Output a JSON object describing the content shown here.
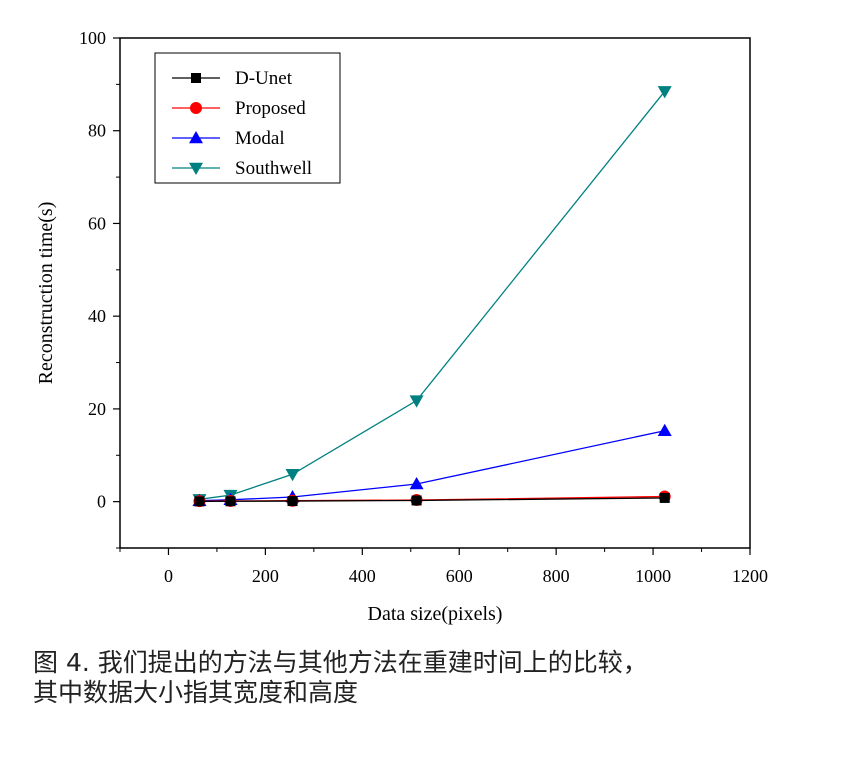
{
  "chart_data": {
    "type": "line",
    "title": "",
    "xlabel": "Data size(pixels)",
    "ylabel": "Reconstruction time(s)",
    "xlim": [
      -100,
      1200
    ],
    "ylim": [
      -10,
      100
    ],
    "xticks": [
      0,
      200,
      400,
      600,
      800,
      1000,
      1200
    ],
    "yticks": [
      0,
      20,
      40,
      60,
      80,
      100
    ],
    "xtick_labels": [
      "0",
      "200",
      "400",
      "600",
      "800",
      "1000",
      "1200"
    ],
    "ytick_labels": [
      "0",
      "20",
      "40",
      "60",
      "80",
      "100"
    ],
    "grid": false,
    "legend_position": "top-left",
    "series": [
      {
        "name": "D-Unet",
        "color": "#000000",
        "marker": "square",
        "x": [
          64,
          128,
          256,
          512,
          1024
        ],
        "y": [
          0.05,
          0.08,
          0.12,
          0.25,
          0.8
        ]
      },
      {
        "name": "Proposed",
        "color": "#ff0000",
        "marker": "circle",
        "x": [
          64,
          128,
          256,
          512,
          1024
        ],
        "y": [
          0.1,
          0.15,
          0.2,
          0.35,
          1.1
        ]
      },
      {
        "name": "Modal",
        "color": "#0000ff",
        "marker": "triangle-up",
        "x": [
          64,
          128,
          256,
          512,
          1024
        ],
        "y": [
          0.2,
          0.4,
          1.0,
          3.8,
          15.3
        ]
      },
      {
        "name": "Southwell",
        "color": "#008080",
        "marker": "triangle-down",
        "x": [
          64,
          128,
          256,
          512,
          1024
        ],
        "y": [
          0.5,
          1.4,
          5.9,
          21.8,
          88.5
        ]
      }
    ]
  },
  "caption": {
    "line1": "图 4. 我们提出的方法与其他方法在重建时间上的比较，",
    "line2": "其中数据大小指其宽度和高度"
  }
}
